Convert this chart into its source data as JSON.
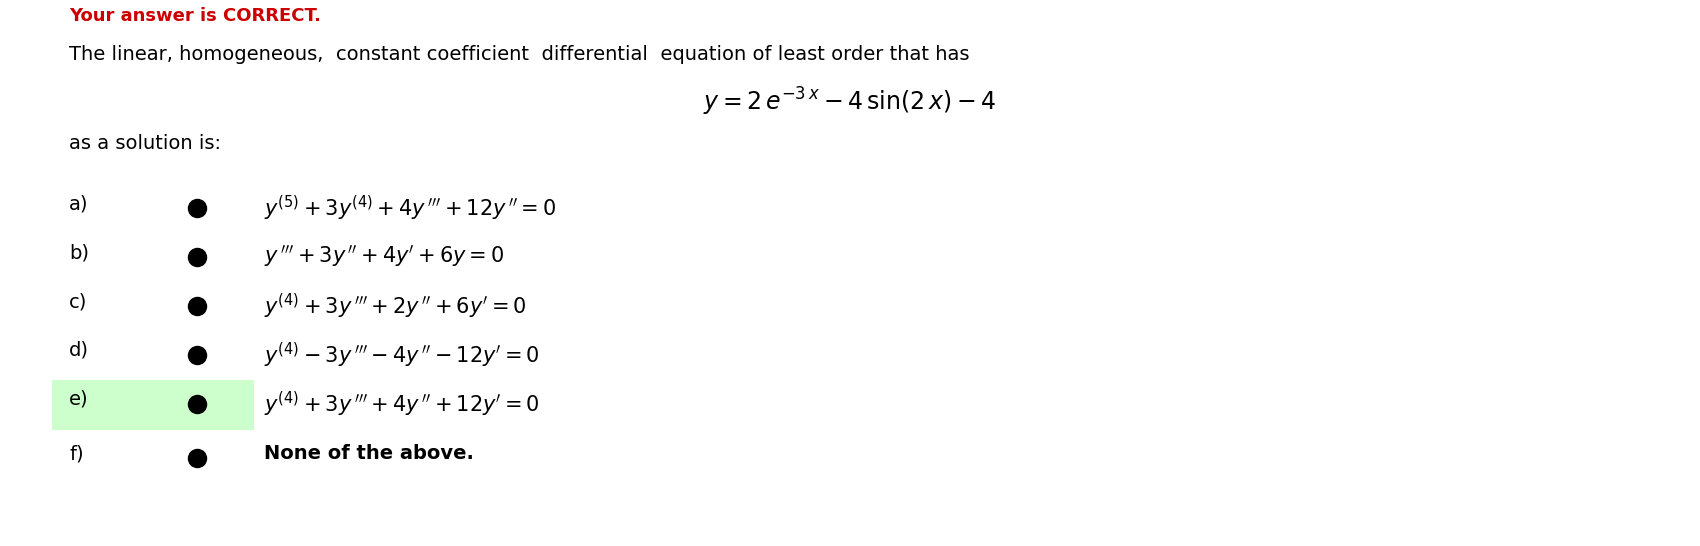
{
  "title_top": "Your answer is CORRECT.",
  "title_top_color": "#cc0000",
  "bg_color": "#ffffff",
  "description": "The linear, homogeneous,  constant coefficient  differential  equation of least order that has",
  "as_solution": "as a solution is:",
  "highlight_e_color": "#ccffcc",
  "options": [
    {
      "label": "a)",
      "formula": "$y^{(5)} + 3y^{(4)} + 4y\\,''' + 12y\\,'' = 0$",
      "highlight": false
    },
    {
      "label": "b)",
      "formula": "$y\\,''' + 3y\\,'' + 4y' + 6y = 0$",
      "highlight": false
    },
    {
      "label": "c)",
      "formula": "$y^{(4)} + 3y\\,''' + 2y\\,'' + 6y' = 0$",
      "highlight": false
    },
    {
      "label": "d)",
      "formula": "$y^{(4)} - 3y\\,''' - 4y\\,'' - 12y' = 0$",
      "highlight": false
    },
    {
      "label": "e)",
      "formula": "$y^{(4)} + 3y\\,''' + 4y\\,'' + 12y' = 0$",
      "highlight": true
    },
    {
      "label": "f)",
      "formula": "None of the above.",
      "highlight": false
    }
  ],
  "figsize": [
    17.0,
    5.46
  ],
  "dpi": 100
}
